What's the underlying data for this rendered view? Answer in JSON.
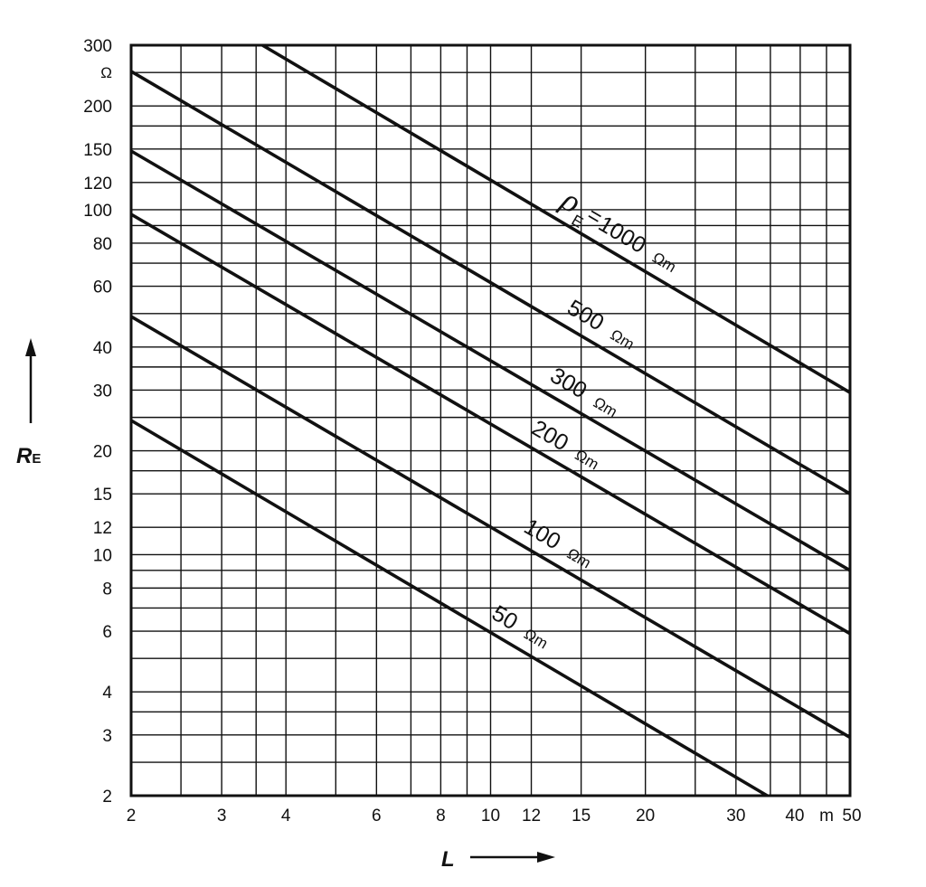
{
  "chart_data": {
    "type": "line",
    "x_scale": "log",
    "y_scale": "log",
    "xlim": [
      2,
      50
    ],
    "ylim": [
      2,
      300
    ],
    "grid": true,
    "x_ticks": [
      "2",
      "3",
      "4",
      "6",
      "8",
      "10",
      "12",
      "15",
      "20",
      "30",
      "40",
      "50"
    ],
    "x_tick_values": [
      2,
      3,
      4,
      6,
      8,
      10,
      12,
      15,
      20,
      30,
      40,
      50
    ],
    "x_unit": "m",
    "y_ticks": [
      "2",
      "3",
      "4",
      "6",
      "8",
      "10",
      "12",
      "15",
      "20",
      "30",
      "40",
      "60",
      "80",
      "100",
      "120",
      "150",
      "200",
      "300"
    ],
    "y_tick_values": [
      2,
      3,
      4,
      6,
      8,
      10,
      12,
      15,
      20,
      30,
      40,
      60,
      80,
      100,
      120,
      150,
      200,
      300
    ],
    "y_unit": "Ω",
    "x_grid_values": [
      2,
      2.5,
      3,
      3.5,
      4,
      5,
      6,
      7,
      8,
      9,
      10,
      12,
      15,
      20,
      25,
      30,
      35,
      40,
      45,
      50
    ],
    "y_grid_values": [
      2,
      2.5,
      3,
      3.5,
      4,
      5,
      6,
      7,
      8,
      9,
      10,
      12,
      15,
      17.5,
      20,
      25,
      30,
      35,
      40,
      50,
      60,
      70,
      80,
      90,
      100,
      120,
      150,
      175,
      200,
      250,
      300
    ],
    "xlabel": "L",
    "ylabel_main": "R",
    "ylabel_sub": "E",
    "rho_symbol": "ρ",
    "rho_sub": "E",
    "series": [
      {
        "name": "1000",
        "unit": "Ωm",
        "x": [
          3.6,
          50
        ],
        "y": [
          300,
          29.5
        ]
      },
      {
        "name": "500",
        "unit": "Ωm",
        "x": [
          2,
          50
        ],
        "y": [
          252,
          15
        ]
      },
      {
        "name": "300",
        "unit": "Ωm",
        "x": [
          2,
          50
        ],
        "y": [
          148,
          9
        ]
      },
      {
        "name": "200",
        "unit": "Ωm",
        "x": [
          2,
          50
        ],
        "y": [
          97,
          5.9
        ]
      },
      {
        "name": "100",
        "unit": "Ωm",
        "x": [
          2,
          50
        ],
        "y": [
          49,
          2.95
        ]
      },
      {
        "name": "50",
        "unit": "Ωm",
        "x": [
          2,
          34.5
        ],
        "y": [
          24.5,
          2
        ]
      }
    ]
  }
}
